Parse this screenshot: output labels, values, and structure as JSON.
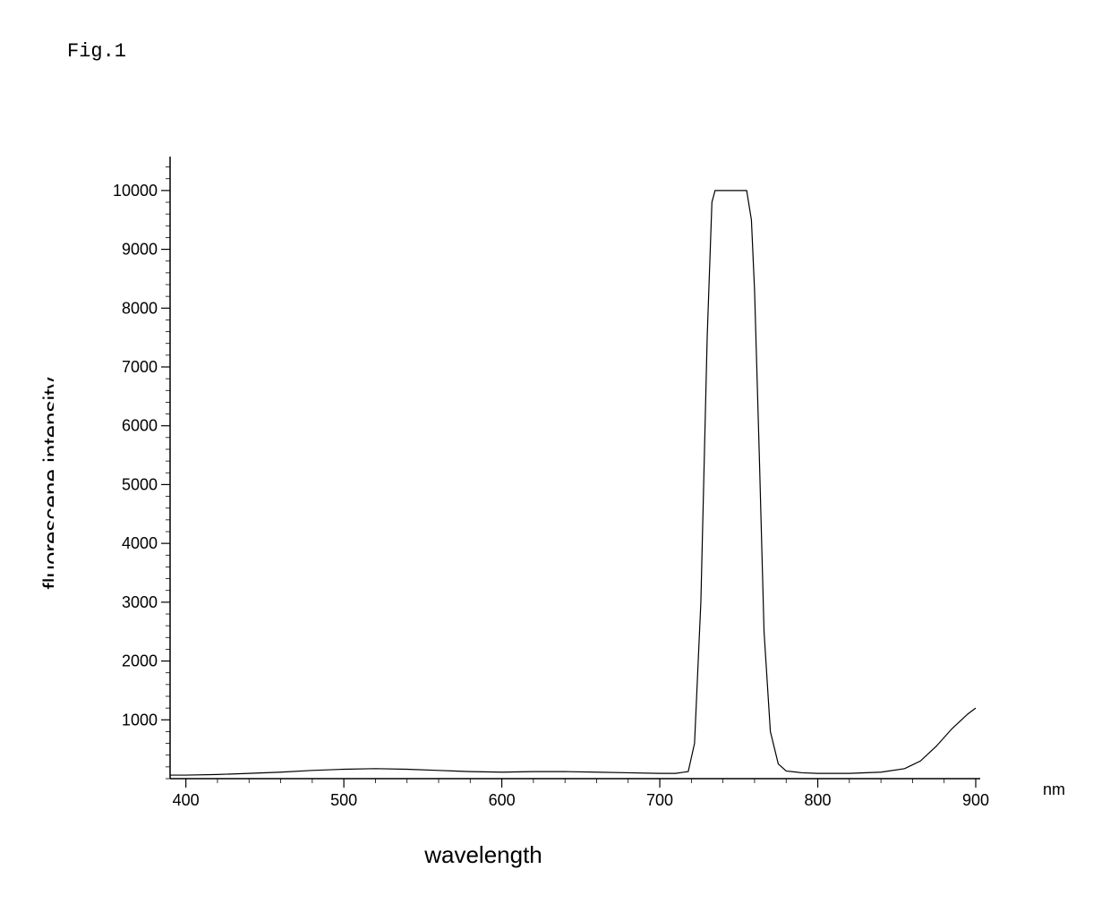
{
  "figure_label": "Fig.1",
  "chart": {
    "type": "line",
    "xlabel": "wavelength",
    "ylabel": "fluorescene intensity",
    "x_unit": "nm",
    "xlim": [
      390,
      900
    ],
    "ylim": [
      0,
      10500
    ],
    "x_ticks": [
      400,
      500,
      600,
      700,
      800,
      900
    ],
    "y_ticks": [
      1000,
      2000,
      3000,
      4000,
      5000,
      6000,
      7000,
      8000,
      9000,
      10000
    ],
    "x_minor_step": 20,
    "y_minor_step": 200,
    "tick_font_size": 18,
    "label_font_size": 26,
    "line_color": "#000000",
    "axis_color": "#000000",
    "background_color": "#ffffff",
    "line_width": 1.2,
    "axis_width": 1.5,
    "series": [
      {
        "x": 390,
        "y": 60
      },
      {
        "x": 400,
        "y": 60
      },
      {
        "x": 420,
        "y": 70
      },
      {
        "x": 440,
        "y": 90
      },
      {
        "x": 460,
        "y": 110
      },
      {
        "x": 480,
        "y": 140
      },
      {
        "x": 500,
        "y": 160
      },
      {
        "x": 520,
        "y": 170
      },
      {
        "x": 540,
        "y": 160
      },
      {
        "x": 560,
        "y": 140
      },
      {
        "x": 580,
        "y": 120
      },
      {
        "x": 600,
        "y": 110
      },
      {
        "x": 620,
        "y": 120
      },
      {
        "x": 640,
        "y": 120
      },
      {
        "x": 660,
        "y": 110
      },
      {
        "x": 680,
        "y": 100
      },
      {
        "x": 700,
        "y": 90
      },
      {
        "x": 710,
        "y": 90
      },
      {
        "x": 718,
        "y": 120
      },
      {
        "x": 722,
        "y": 600
      },
      {
        "x": 726,
        "y": 3000
      },
      {
        "x": 730,
        "y": 7500
      },
      {
        "x": 733,
        "y": 9800
      },
      {
        "x": 735,
        "y": 10000
      },
      {
        "x": 740,
        "y": 10000
      },
      {
        "x": 750,
        "y": 10000
      },
      {
        "x": 755,
        "y": 10000
      },
      {
        "x": 758,
        "y": 9500
      },
      {
        "x": 760,
        "y": 8300
      },
      {
        "x": 763,
        "y": 5500
      },
      {
        "x": 766,
        "y": 2500
      },
      {
        "x": 770,
        "y": 800
      },
      {
        "x": 775,
        "y": 250
      },
      {
        "x": 780,
        "y": 130
      },
      {
        "x": 790,
        "y": 100
      },
      {
        "x": 800,
        "y": 90
      },
      {
        "x": 820,
        "y": 90
      },
      {
        "x": 840,
        "y": 110
      },
      {
        "x": 855,
        "y": 170
      },
      {
        "x": 865,
        "y": 300
      },
      {
        "x": 875,
        "y": 550
      },
      {
        "x": 885,
        "y": 850
      },
      {
        "x": 895,
        "y": 1100
      },
      {
        "x": 900,
        "y": 1200
      }
    ]
  }
}
